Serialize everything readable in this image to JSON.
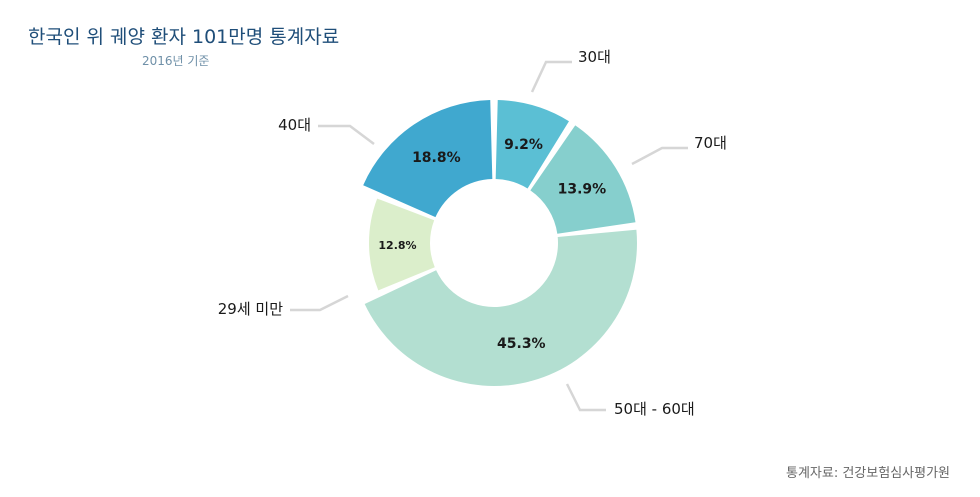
{
  "header": {
    "title": "한국인 위 궤양 환자 101만명 통계자료",
    "subtitle": "2016년 기준"
  },
  "footer": {
    "source": "통계자료: 건강보험심사평가원"
  },
  "chart_data": {
    "type": "pie",
    "title": "한국인 위 궤양 환자 101만명 통계자료",
    "subtitle": "2016년 기준",
    "categories": [
      "30대",
      "70대",
      "50대 - 60대",
      "29세 미만",
      "40대"
    ],
    "values": [
      9.2,
      13.9,
      45.3,
      12.8,
      18.8
    ],
    "value_labels": [
      "9.2%",
      "13.9%",
      "45.3%",
      "12.8%",
      "18.8%"
    ],
    "colors": [
      "#5bbfd4",
      "#86cfcd",
      "#b3dfd1",
      "#dbeecb",
      "#40a8cf"
    ],
    "donut": true,
    "legend": "none",
    "grid": false
  }
}
